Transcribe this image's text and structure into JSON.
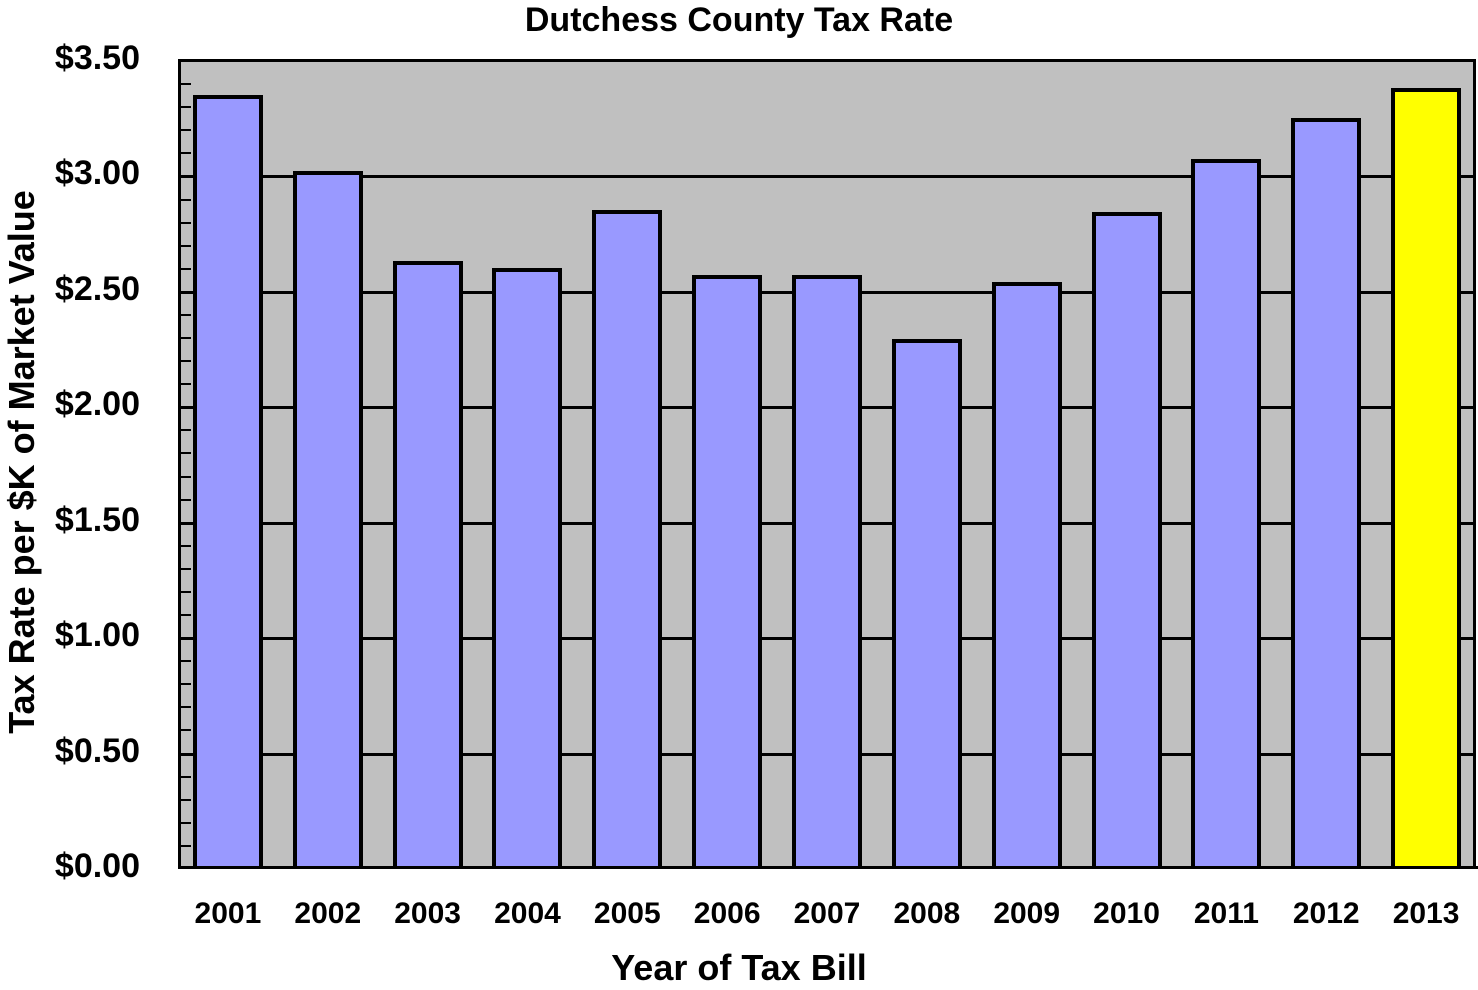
{
  "chart_data": {
    "type": "bar",
    "title": "Dutchess County Tax Rate",
    "xlabel": "Year of Tax Bill",
    "ylabel": "Tax Rate per $K of Market Value",
    "categories": [
      "2001",
      "2002",
      "2003",
      "2004",
      "2005",
      "2006",
      "2007",
      "2008",
      "2009",
      "2010",
      "2011",
      "2012",
      "2013"
    ],
    "values": [
      3.35,
      3.02,
      2.63,
      2.6,
      2.85,
      2.57,
      2.57,
      2.29,
      2.54,
      2.84,
      3.07,
      3.25,
      3.38
    ],
    "ylim": [
      0,
      3.5
    ],
    "yticks": [
      "$0.00",
      "$0.50",
      "$1.00",
      "$1.50",
      "$2.00",
      "$2.50",
      "$3.00",
      "$3.50"
    ],
    "grid": true,
    "legend": null,
    "colors": {
      "bar": "#9999ff",
      "highlight": "#ffff00",
      "highlight_category": "2013",
      "plot_background": "#c0c0c0"
    }
  }
}
